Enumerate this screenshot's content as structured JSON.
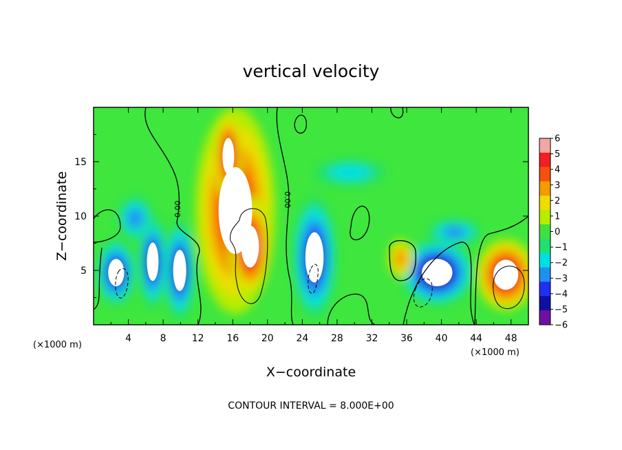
{
  "chart_data": {
    "type": "heatmap",
    "title": "vertical velocity",
    "xlabel": "X−coordinate",
    "ylabel": "Z−coordinate",
    "x_unit_label": "(×1000 m)",
    "xlim": [
      0,
      50
    ],
    "ylim": [
      0,
      20
    ],
    "x_ticks": [
      4,
      8,
      12,
      16,
      20,
      24,
      28,
      32,
      36,
      40,
      44,
      48
    ],
    "y_ticks": [
      5,
      10,
      15
    ],
    "colorbar": {
      "range": [
        -6,
        6
      ],
      "ticks": [
        "6",
        "5",
        "4",
        "3",
        "2",
        "1",
        "0",
        "−1",
        "−2",
        "−3",
        "−4",
        "−5",
        "−6"
      ],
      "colors": [
        "#f4a6a6",
        "#f02020",
        "#f55010",
        "#f59a00",
        "#eedd00",
        "#b8ec00",
        "#40e040",
        "#20e070",
        "#00e0e0",
        "#2090f0",
        "#2030f0",
        "#1010a0",
        "#7010a0"
      ]
    },
    "contour_labels": [
      "0.00",
      "0.00"
    ],
    "background_value": 0,
    "features": [
      {
        "x": 16.3,
        "z": 10.5,
        "rx": 4.6,
        "rz": 9.5,
        "value": 5
      },
      {
        "x": 15.5,
        "z": 15.5,
        "rx": 1.6,
        "rz": 4.0,
        "value": 5.5
      },
      {
        "x": 18.0,
        "z": 7.2,
        "rx": 2.4,
        "rz": 4.6,
        "value": 6
      },
      {
        "x": 2.6,
        "z": 4.8,
        "rx": 2.2,
        "rz": 3.0,
        "value": -5
      },
      {
        "x": 6.8,
        "z": 5.8,
        "rx": 1.6,
        "rz": 4.2,
        "value": -4.5
      },
      {
        "x": 9.9,
        "z": 5.0,
        "rx": 1.8,
        "rz": 4.5,
        "value": -5
      },
      {
        "x": 25.4,
        "z": 6.2,
        "rx": 2.5,
        "rz": 5.5,
        "value": -4.5
      },
      {
        "x": 39.5,
        "z": 4.8,
        "rx": 4.2,
        "rz": 3.0,
        "value": -5.5
      },
      {
        "x": 47.4,
        "z": 4.6,
        "rx": 3.4,
        "rz": 3.3,
        "value": 5.5
      },
      {
        "x": 35.3,
        "z": 6.1,
        "rx": 1.5,
        "rz": 1.8,
        "value": 3
      },
      {
        "x": 29.5,
        "z": 14.0,
        "rx": 4.0,
        "rz": 1.2,
        "value": -1.8
      },
      {
        "x": 41.5,
        "z": 8.5,
        "rx": 3.0,
        "rz": 1.2,
        "value": -2.5
      },
      {
        "x": 4.8,
        "z": 9.8,
        "rx": 2.0,
        "rz": 2.0,
        "value": -2.8
      }
    ]
  },
  "footer": {
    "contour_interval": "CONTOUR INTERVAL =  8.000E+00"
  }
}
